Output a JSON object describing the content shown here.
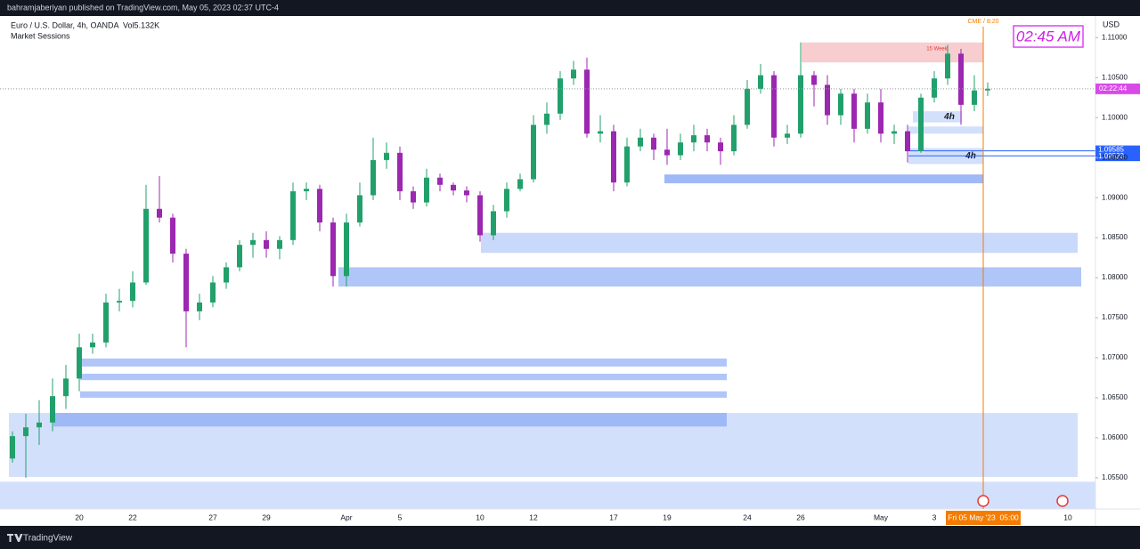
{
  "header": {
    "published": "bahramjaberiyan published on TradingView.com, May 05, 2023 02:37 UTC-4"
  },
  "footer": {
    "brand": "TradingView"
  },
  "chart_data": {
    "type": "candlestick",
    "title": "Euro / U.S. Dollar, 4h, OANDA  Vol5.132K",
    "subtitle": "Market Sessions",
    "currency": "USD",
    "clock": "02:45 AM",
    "session_label": "CME / 8:20",
    "countdown": "02:22:44",
    "time_label": "Fri 05 May '23  05:00",
    "up_color": "#22a06b",
    "down_color": "#9c27b0",
    "grid": false,
    "categories": [
      null,
      null,
      null,
      null,
      null,
      "20",
      null,
      null,
      null,
      "22",
      null,
      null,
      null,
      null,
      null,
      "27",
      null,
      null,
      null,
      "29",
      null,
      null,
      null,
      null,
      null,
      "Apr",
      null,
      null,
      null,
      "5",
      null,
      null,
      null,
      null,
      null,
      "10",
      null,
      null,
      null,
      "12",
      null,
      null,
      null,
      null,
      null,
      "17",
      null,
      null,
      null,
      "19",
      null,
      null,
      null,
      null,
      null,
      "24",
      null,
      null,
      null,
      "26",
      null,
      null,
      null,
      null,
      null,
      "May",
      null,
      null,
      null,
      "3",
      null,
      null,
      null,
      null,
      null,
      null,
      null,
      null,
      null,
      "10"
    ],
    "open": [
      1.0574,
      1.0602,
      1.0613,
      1.0619,
      1.0652,
      1.0674,
      1.0713,
      1.0719,
      1.0769,
      1.0771,
      1.0794,
      1.0886,
      1.0875,
      1.083,
      1.0758,
      1.0769,
      1.0794,
      1.0813,
      1.0841,
      1.0847,
      1.0836,
      1.0847,
      1.0908,
      1.0911,
      1.0869,
      1.0802,
      1.0869,
      1.0903,
      1.0947,
      1.0956,
      1.0908,
      1.0894,
      1.0925,
      1.0916,
      1.0909,
      1.0903,
      1.0853,
      1.0883,
      1.0911,
      1.0923,
      1.0991,
      1.1005,
      1.1049,
      1.106,
      1.098,
      1.0983,
      1.0919,
      1.0964,
      1.0975,
      1.096,
      1.0953,
      1.0969,
      1.0978,
      1.0969,
      1.0958,
      1.0991,
      1.1036,
      1.1053,
      1.0975,
      1.098,
      1.1053,
      1.1041,
      1.1003,
      1.103,
      1.0986,
      1.1019,
      1.098,
      1.0983,
      1.0958,
      1.1025,
      1.1049,
      1.108,
      1.1016,
      1.1034,
      null,
      null,
      null,
      null,
      null,
      null
    ],
    "high": [
      1.0608,
      1.063,
      1.0647,
      1.0674,
      1.0691,
      1.073,
      1.073,
      1.078,
      1.0786,
      1.0808,
      1.0916,
      1.0927,
      1.088,
      1.0836,
      1.078,
      1.0802,
      1.0819,
      1.0847,
      1.0856,
      1.0858,
      1.0852,
      1.0919,
      1.0919,
      1.0916,
      1.0875,
      1.088,
      1.0919,
      1.0975,
      1.0969,
      1.0964,
      1.0914,
      1.0936,
      1.093,
      1.0919,
      1.0914,
      1.0908,
      1.0891,
      1.0919,
      1.093,
      1.1003,
      1.1019,
      1.1058,
      1.1071,
      1.1075,
      1.1003,
      1.0991,
      1.0975,
      1.0986,
      1.098,
      1.0986,
      1.098,
      1.0991,
      1.0986,
      1.0975,
      1.1003,
      1.1047,
      1.1067,
      1.1058,
      1.0991,
      1.1094,
      1.1058,
      1.1053,
      1.1036,
      1.1036,
      1.103,
      1.1036,
      1.0991,
      1.0991,
      1.103,
      1.1058,
      1.1091,
      1.1086,
      1.1053,
      1.1044,
      null,
      null,
      null,
      null,
      null,
      null
    ],
    "low": [
      1.0569,
      1.055,
      1.0591,
      1.0608,
      1.0636,
      1.0658,
      1.0705,
      1.0713,
      1.0758,
      1.0763,
      1.0791,
      1.0869,
      1.0819,
      1.0713,
      1.0747,
      1.0763,
      1.0786,
      1.0808,
      1.0825,
      1.0825,
      1.0823,
      1.0841,
      1.0897,
      1.0858,
      1.0789,
      1.0789,
      1.0864,
      1.0897,
      1.0936,
      1.0897,
      1.0886,
      1.0889,
      1.0908,
      1.0903,
      1.0894,
      1.0845,
      1.0847,
      1.0875,
      1.0908,
      1.0919,
      1.098,
      1.0997,
      1.1041,
      1.0975,
      1.0969,
      1.0908,
      1.0914,
      1.0958,
      1.0947,
      1.0941,
      1.0947,
      1.0958,
      1.0958,
      1.0941,
      1.0953,
      1.0986,
      1.103,
      1.0964,
      1.0967,
      1.0975,
      1.1014,
      1.0991,
      1.0991,
      1.0969,
      1.098,
      1.0969,
      1.0967,
      1.0944,
      1.0956,
      1.1019,
      1.1041,
      1.0991,
      1.1008,
      1.1027,
      null,
      null,
      null,
      null,
      null,
      null
    ],
    "close": [
      1.0602,
      1.0613,
      1.0619,
      1.0652,
      1.0674,
      1.0713,
      1.0719,
      1.0769,
      1.0771,
      1.0794,
      1.0886,
      1.0875,
      1.083,
      1.0758,
      1.0769,
      1.0794,
      1.0813,
      1.0841,
      1.0847,
      1.0836,
      1.0847,
      1.0908,
      1.0911,
      1.0869,
      1.0802,
      1.0869,
      1.0903,
      1.0947,
      1.0956,
      1.0908,
      1.0894,
      1.0925,
      1.0916,
      1.0909,
      1.0903,
      1.0853,
      1.0883,
      1.0911,
      1.0923,
      1.0991,
      1.1005,
      1.1049,
      1.106,
      1.098,
      1.0983,
      1.0919,
      1.0964,
      1.0975,
      1.096,
      1.0953,
      1.0969,
      1.0978,
      1.0969,
      1.0958,
      1.0991,
      1.1036,
      1.1053,
      1.0975,
      1.098,
      1.1053,
      1.1041,
      1.1003,
      1.103,
      1.0986,
      1.1019,
      1.098,
      1.0983,
      1.0958,
      1.1025,
      1.1049,
      1.108,
      1.1016,
      1.1034,
      1.1036,
      null,
      null,
      null,
      null,
      null,
      null
    ],
    "ylim": [
      1.0511,
      1.1127
    ],
    "yticks": [
      {
        "value": 1.055,
        "label": "1.05500"
      },
      {
        "value": 1.06,
        "label": "1.06000"
      },
      {
        "value": 1.065,
        "label": "1.06500"
      },
      {
        "value": 1.07,
        "label": "1.07000"
      },
      {
        "value": 1.075,
        "label": "1.07500"
      },
      {
        "value": 1.08,
        "label": "1.08000"
      },
      {
        "value": 1.085,
        "label": "1.08500"
      },
      {
        "value": 1.09,
        "label": "1.09000"
      },
      {
        "value": 1.095,
        "label": "1.09500"
      },
      {
        "value": 1.1,
        "label": "1.10000"
      },
      {
        "value": 1.105,
        "label": "1.10500"
      },
      {
        "value": 1.11,
        "label": "1.11000"
      }
    ],
    "levels": [
      {
        "value": 1.09585,
        "label": "1.09585"
      },
      {
        "value": 1.09523,
        "label": "1.09523"
      }
    ],
    "zones": [
      {
        "top": 1.0631,
        "bottom": 1.0551,
        "color": "#d3e0fc"
      },
      {
        "top": 1.0545,
        "bottom": 1.0511,
        "color": "#d3e0fc"
      },
      {
        "top": 1.0631,
        "bottom": 1.0614,
        "color": "#9fb8f6"
      },
      {
        "top": 1.0699,
        "bottom": 1.0689,
        "color": "#b0c6f8"
      },
      {
        "top": 1.068,
        "bottom": 1.0672,
        "color": "#b0c6f8"
      },
      {
        "top": 1.0658,
        "bottom": 1.065,
        "color": "#b0c6f8"
      },
      {
        "top": 1.0856,
        "bottom": 1.0831,
        "color": "#c9d9fb"
      },
      {
        "top": 1.0813,
        "bottom": 1.0789,
        "color": "#b0c6f8"
      },
      {
        "top": 1.0929,
        "bottom": 1.0918,
        "color": "#9fb8f6"
      },
      {
        "top": 1.0962,
        "bottom": 1.0942,
        "color": "#d3e0fc",
        "label": "4h"
      },
      {
        "top": 1.0989,
        "bottom": 1.098,
        "color": "#d3e0fc"
      },
      {
        "top": 1.1008,
        "bottom": 1.0994,
        "color": "#d3e0fc",
        "label": "4h"
      },
      {
        "top": 1.1094,
        "bottom": 1.1069,
        "color": "#f8cdd0",
        "label": "15 Week"
      }
    ]
  }
}
